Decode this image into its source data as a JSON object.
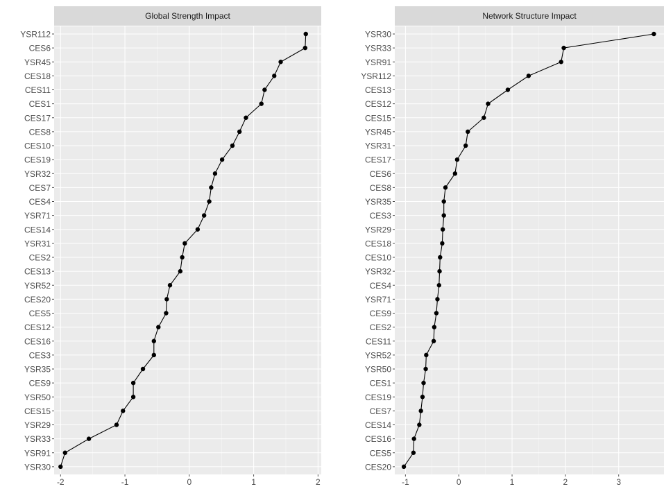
{
  "chart_data": [
    {
      "type": "line",
      "panel_title": "Global Strength Impact",
      "xlim": [
        -2.1,
        2.05
      ],
      "x_ticks": [
        -2,
        -1,
        0,
        1,
        2
      ],
      "x_tick_labels": [
        "-2",
        "-1",
        "0",
        "1",
        "2"
      ],
      "categories": [
        "YSR112",
        "CES6",
        "YSR45",
        "CES18",
        "CES11",
        "CES1",
        "CES17",
        "CES8",
        "CES10",
        "CES19",
        "YSR32",
        "CES7",
        "CES4",
        "YSR71",
        "CES14",
        "YSR31",
        "CES2",
        "CES13",
        "YSR52",
        "CES20",
        "CES5",
        "CES12",
        "CES16",
        "CES3",
        "YSR35",
        "CES9",
        "YSR50",
        "CES15",
        "YSR29",
        "YSR33",
        "YSR91",
        "YSR30"
      ],
      "values": [
        1.81,
        1.8,
        1.42,
        1.32,
        1.17,
        1.12,
        0.88,
        0.78,
        0.67,
        0.51,
        0.4,
        0.34,
        0.31,
        0.23,
        0.13,
        -0.07,
        -0.11,
        -0.14,
        -0.3,
        -0.35,
        -0.36,
        -0.48,
        -0.55,
        -0.55,
        -0.72,
        -0.87,
        -0.87,
        -1.03,
        -1.13,
        -1.56,
        -1.93,
        -2.0
      ],
      "point_color": "#000000",
      "line_color": "#000000"
    },
    {
      "type": "line",
      "panel_title": "Network Structure Impact",
      "xlim": [
        -1.2,
        3.85
      ],
      "x_ticks": [
        -1,
        0,
        1,
        2,
        3
      ],
      "x_tick_labels": [
        "-1",
        "0",
        "1",
        "2",
        "3"
      ],
      "categories": [
        "YSR30",
        "YSR33",
        "YSR91",
        "YSR112",
        "CES13",
        "CES12",
        "CES15",
        "YSR45",
        "YSR31",
        "CES17",
        "CES6",
        "CES8",
        "YSR35",
        "CES3",
        "YSR29",
        "CES18",
        "CES10",
        "YSR32",
        "CES4",
        "YSR71",
        "CES9",
        "CES2",
        "CES11",
        "YSR52",
        "YSR50",
        "CES1",
        "CES19",
        "CES7",
        "CES14",
        "CES16",
        "CES5",
        "CES20"
      ],
      "values": [
        3.66,
        1.97,
        1.92,
        1.31,
        0.92,
        0.55,
        0.47,
        0.17,
        0.13,
        -0.03,
        -0.07,
        -0.25,
        -0.28,
        -0.28,
        -0.3,
        -0.31,
        -0.35,
        -0.36,
        -0.37,
        -0.4,
        -0.42,
        -0.46,
        -0.47,
        -0.61,
        -0.62,
        -0.66,
        -0.68,
        -0.71,
        -0.74,
        -0.84,
        -0.85,
        -1.03
      ],
      "point_color": "#000000",
      "line_color": "#000000"
    }
  ],
  "style": {
    "panel_background": "#ebebeb",
    "strip_background": "#d9d9d9",
    "grid_major": "#ffffff",
    "tick_color": "#4d4d4d"
  }
}
